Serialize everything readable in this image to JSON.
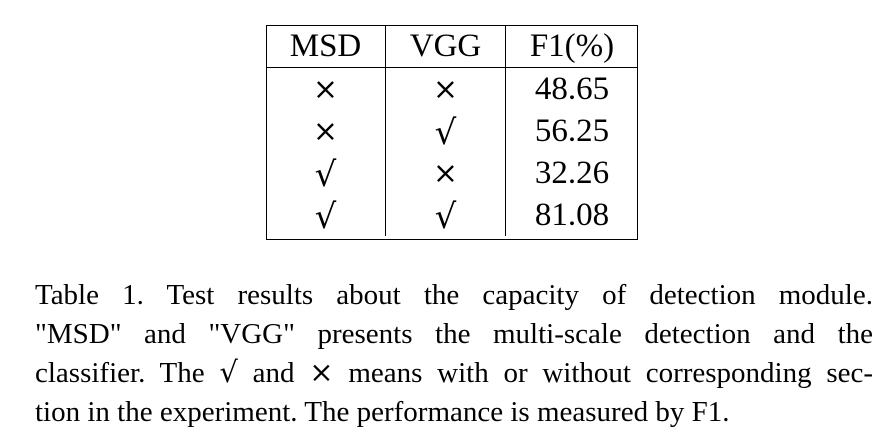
{
  "table": {
    "headers": [
      "MSD",
      "VGG",
      "F1(%)"
    ],
    "rows": [
      {
        "msd": "×",
        "vgg": "×",
        "f1": "48.65"
      },
      {
        "msd": "×",
        "vgg": "√",
        "f1": "56.25"
      },
      {
        "msd": "√",
        "vgg": "×",
        "f1": "32.26"
      },
      {
        "msd": "√",
        "vgg": "√",
        "f1": "81.08"
      }
    ]
  },
  "caption": {
    "line1": "Table 1. Test results about the capacity of detection module.",
    "line2": "\"MSD\" and \"VGG\" presents the multi-scale detection and the",
    "line3_a": "classifier. The",
    "line3_check": "√",
    "line3_b": "and",
    "line3_cross": "×",
    "line3_c": "means with or without corresponding sec-",
    "line4": "tion in the experiment. The performance is measured by F1."
  }
}
